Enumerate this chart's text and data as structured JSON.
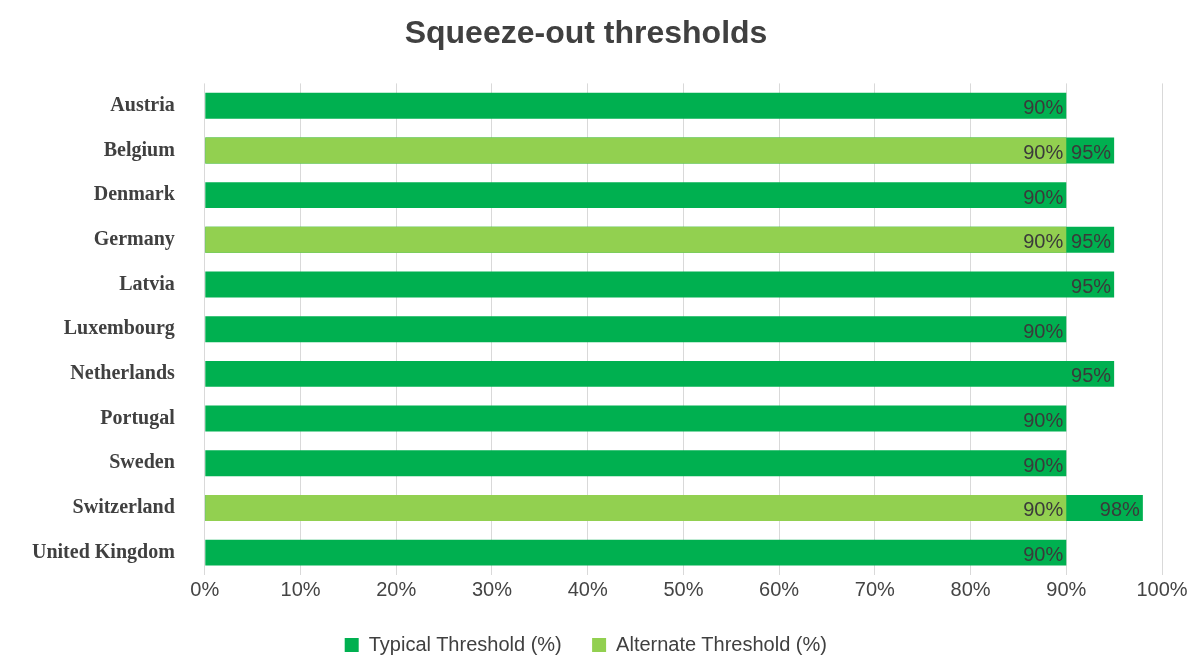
{
  "chart_data": {
    "type": "bar",
    "orientation": "horizontal",
    "title": "Squeeze-out thresholds",
    "categories": [
      "Austria",
      "Belgium",
      "Denmark",
      "Germany",
      "Latvia",
      "Luxembourg",
      "Netherlands",
      "Portugal",
      "Sweden",
      "Switzerland",
      "United Kingdom"
    ],
    "series": [
      {
        "name": "Typical Threshold (%)",
        "color": "#00b050",
        "values": [
          90,
          95,
          90,
          95,
          95,
          90,
          95,
          90,
          90,
          98,
          90
        ],
        "value_labels": [
          "90%",
          "95%",
          "90%",
          "95%",
          "95%",
          "90%",
          "95%",
          "90%",
          "90%",
          "98%",
          "90%"
        ]
      },
      {
        "name": "Alternate Threshold (%)",
        "color": "#92d050",
        "values": [
          null,
          90,
          null,
          90,
          null,
          null,
          null,
          null,
          null,
          90,
          null
        ],
        "value_labels": [
          null,
          "90%",
          null,
          "90%",
          null,
          null,
          null,
          null,
          null,
          "90%",
          null
        ]
      }
    ],
    "xlim": [
      0,
      100
    ],
    "xticks": [
      {
        "value": 0,
        "label": "0%"
      },
      {
        "value": 10,
        "label": "10%"
      },
      {
        "value": 20,
        "label": "20%"
      },
      {
        "value": 30,
        "label": "30%"
      },
      {
        "value": 40,
        "label": "40%"
      },
      {
        "value": 50,
        "label": "50%"
      },
      {
        "value": 60,
        "label": "60%"
      },
      {
        "value": 70,
        "label": "70%"
      },
      {
        "value": 80,
        "label": "80%"
      },
      {
        "value": 90,
        "label": "90%"
      },
      {
        "value": 100,
        "label": "100%"
      }
    ],
    "grid": "x",
    "legend": "bottom"
  }
}
